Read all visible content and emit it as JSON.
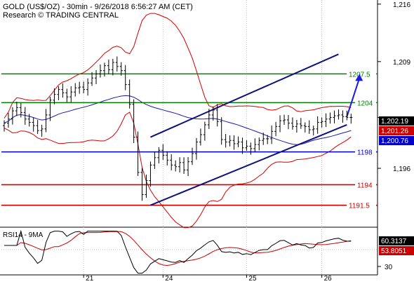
{
  "header": {
    "title": "GOLD (US$/OZ) - 30min - 9/26/2018 6:56:27 AM (CET)",
    "credit": "Research © TRADING CENTRAL"
  },
  "colors": {
    "price": "#000000",
    "bollinger": "#d40000",
    "ma": "#1a1aa8",
    "channel": "#10107a",
    "resistance": "#008000",
    "support_blue": "#0000cc",
    "support_red": "#cc0000",
    "rsi": "#000000",
    "rsi_ma": "#cc0000",
    "arrow": "#1a1ae0"
  },
  "chart_data": [
    {
      "type": "candlestick",
      "panel": "price",
      "y_axis_ticks": [
        1196,
        1202.19,
        1209,
        1216
      ],
      "y_axis_tick_labels": [
        "1,196",
        "",
        "1,209",
        "1,216"
      ],
      "ylim": [
        1189,
        1216.5
      ],
      "x_tick_labels": [
        {
          "label": "21",
          "bar": 19
        },
        {
          "label": "24",
          "bar": 38
        },
        {
          "label": "25",
          "bar": 58
        },
        {
          "label": "26",
          "bar": 76
        }
      ],
      "bar_count": 84,
      "price_close": [
        1201.5,
        1202.0,
        1203.0,
        1203.4,
        1202.8,
        1202.0,
        1201.6,
        1201.2,
        1200.6,
        1200.8,
        1202.5,
        1204.3,
        1205.0,
        1205.6,
        1205.2,
        1204.7,
        1205.3,
        1205.8,
        1205.9,
        1205.6,
        1206.4,
        1207.0,
        1207.5,
        1207.9,
        1208.5,
        1208.0,
        1208.9,
        1208.4,
        1207.9,
        1206.2,
        1203.8,
        1199.8,
        1195.5,
        1192.8,
        1194.5,
        1196.4,
        1197.3,
        1198.2,
        1197.6,
        1197.0,
        1196.4,
        1196.2,
        1196.7,
        1195.8,
        1196.8,
        1197.8,
        1199.2,
        1200.1,
        1201.3,
        1202.5,
        1203.1,
        1201.7,
        1199.5,
        1199.2,
        1199.4,
        1199.0,
        1199.2,
        1198.5,
        1198.7,
        1198.4,
        1198.9,
        1199.4,
        1199.6,
        1199.6,
        1200.5,
        1201.1,
        1201.8,
        1201.9,
        1201.5,
        1201.1,
        1201.4,
        1201.2,
        1201.1,
        1200.7,
        1200.8,
        1201.6,
        1201.7,
        1202.0,
        1202.2,
        1202.4,
        1202.5,
        1202.3,
        1202.2,
        1202.19
      ],
      "series": [
        {
          "name": "",
          "style": "bollinger_upper"
        },
        {
          "name": "",
          "style": "bollinger_lower"
        },
        {
          "name": "",
          "style": "moving_average"
        }
      ],
      "levels": [
        {
          "value": 1207.5,
          "label": "1207.5",
          "color": "#008000"
        },
        {
          "value": 1204,
          "label": "1204",
          "color": "#008000"
        },
        {
          "value": 1198,
          "label": "1198",
          "color": "#0000cc"
        },
        {
          "value": 1194,
          "label": "1194",
          "color": "#cc0000"
        },
        {
          "value": 1191.5,
          "label": "1191.5",
          "color": "#cc0000"
        }
      ],
      "value_tags": [
        {
          "value": 1202.19,
          "label": "1,202.19",
          "color": "#000000"
        },
        {
          "value": 1201.26,
          "label": "1,201.26",
          "color": "#cc0000"
        },
        {
          "value": 1200.76,
          "label": "1,200.76",
          "color": "#0000cc"
        }
      ],
      "channel": {
        "upper": [
          {
            "bar": 35,
            "value": 1199.8
          },
          {
            "bar": 80,
            "value": 1209.9
          }
        ],
        "lower": [
          {
            "bar": 35,
            "value": 1191.5
          },
          {
            "bar": 82,
            "value": 1201.3
          }
        ]
      },
      "projection_arrow": {
        "from": {
          "bar": 82,
          "value": 1202.3
        },
        "to": {
          "bar": 85,
          "value": 1207.5
        }
      }
    },
    {
      "type": "line",
      "panel": "rsi",
      "title": "RSI14 - 9MA",
      "y_axis_tick_labels": [
        "30"
      ],
      "ylim": [
        20,
        75
      ],
      "series": [
        {
          "name": "RSI14"
        },
        {
          "name": "9MA"
        }
      ],
      "value_tags": [
        {
          "value": 60.3137,
          "label": "60.3137",
          "color": "#000000"
        },
        {
          "value": 53.8051,
          "label": "53.8051",
          "color": "#cc0000"
        }
      ]
    }
  ]
}
